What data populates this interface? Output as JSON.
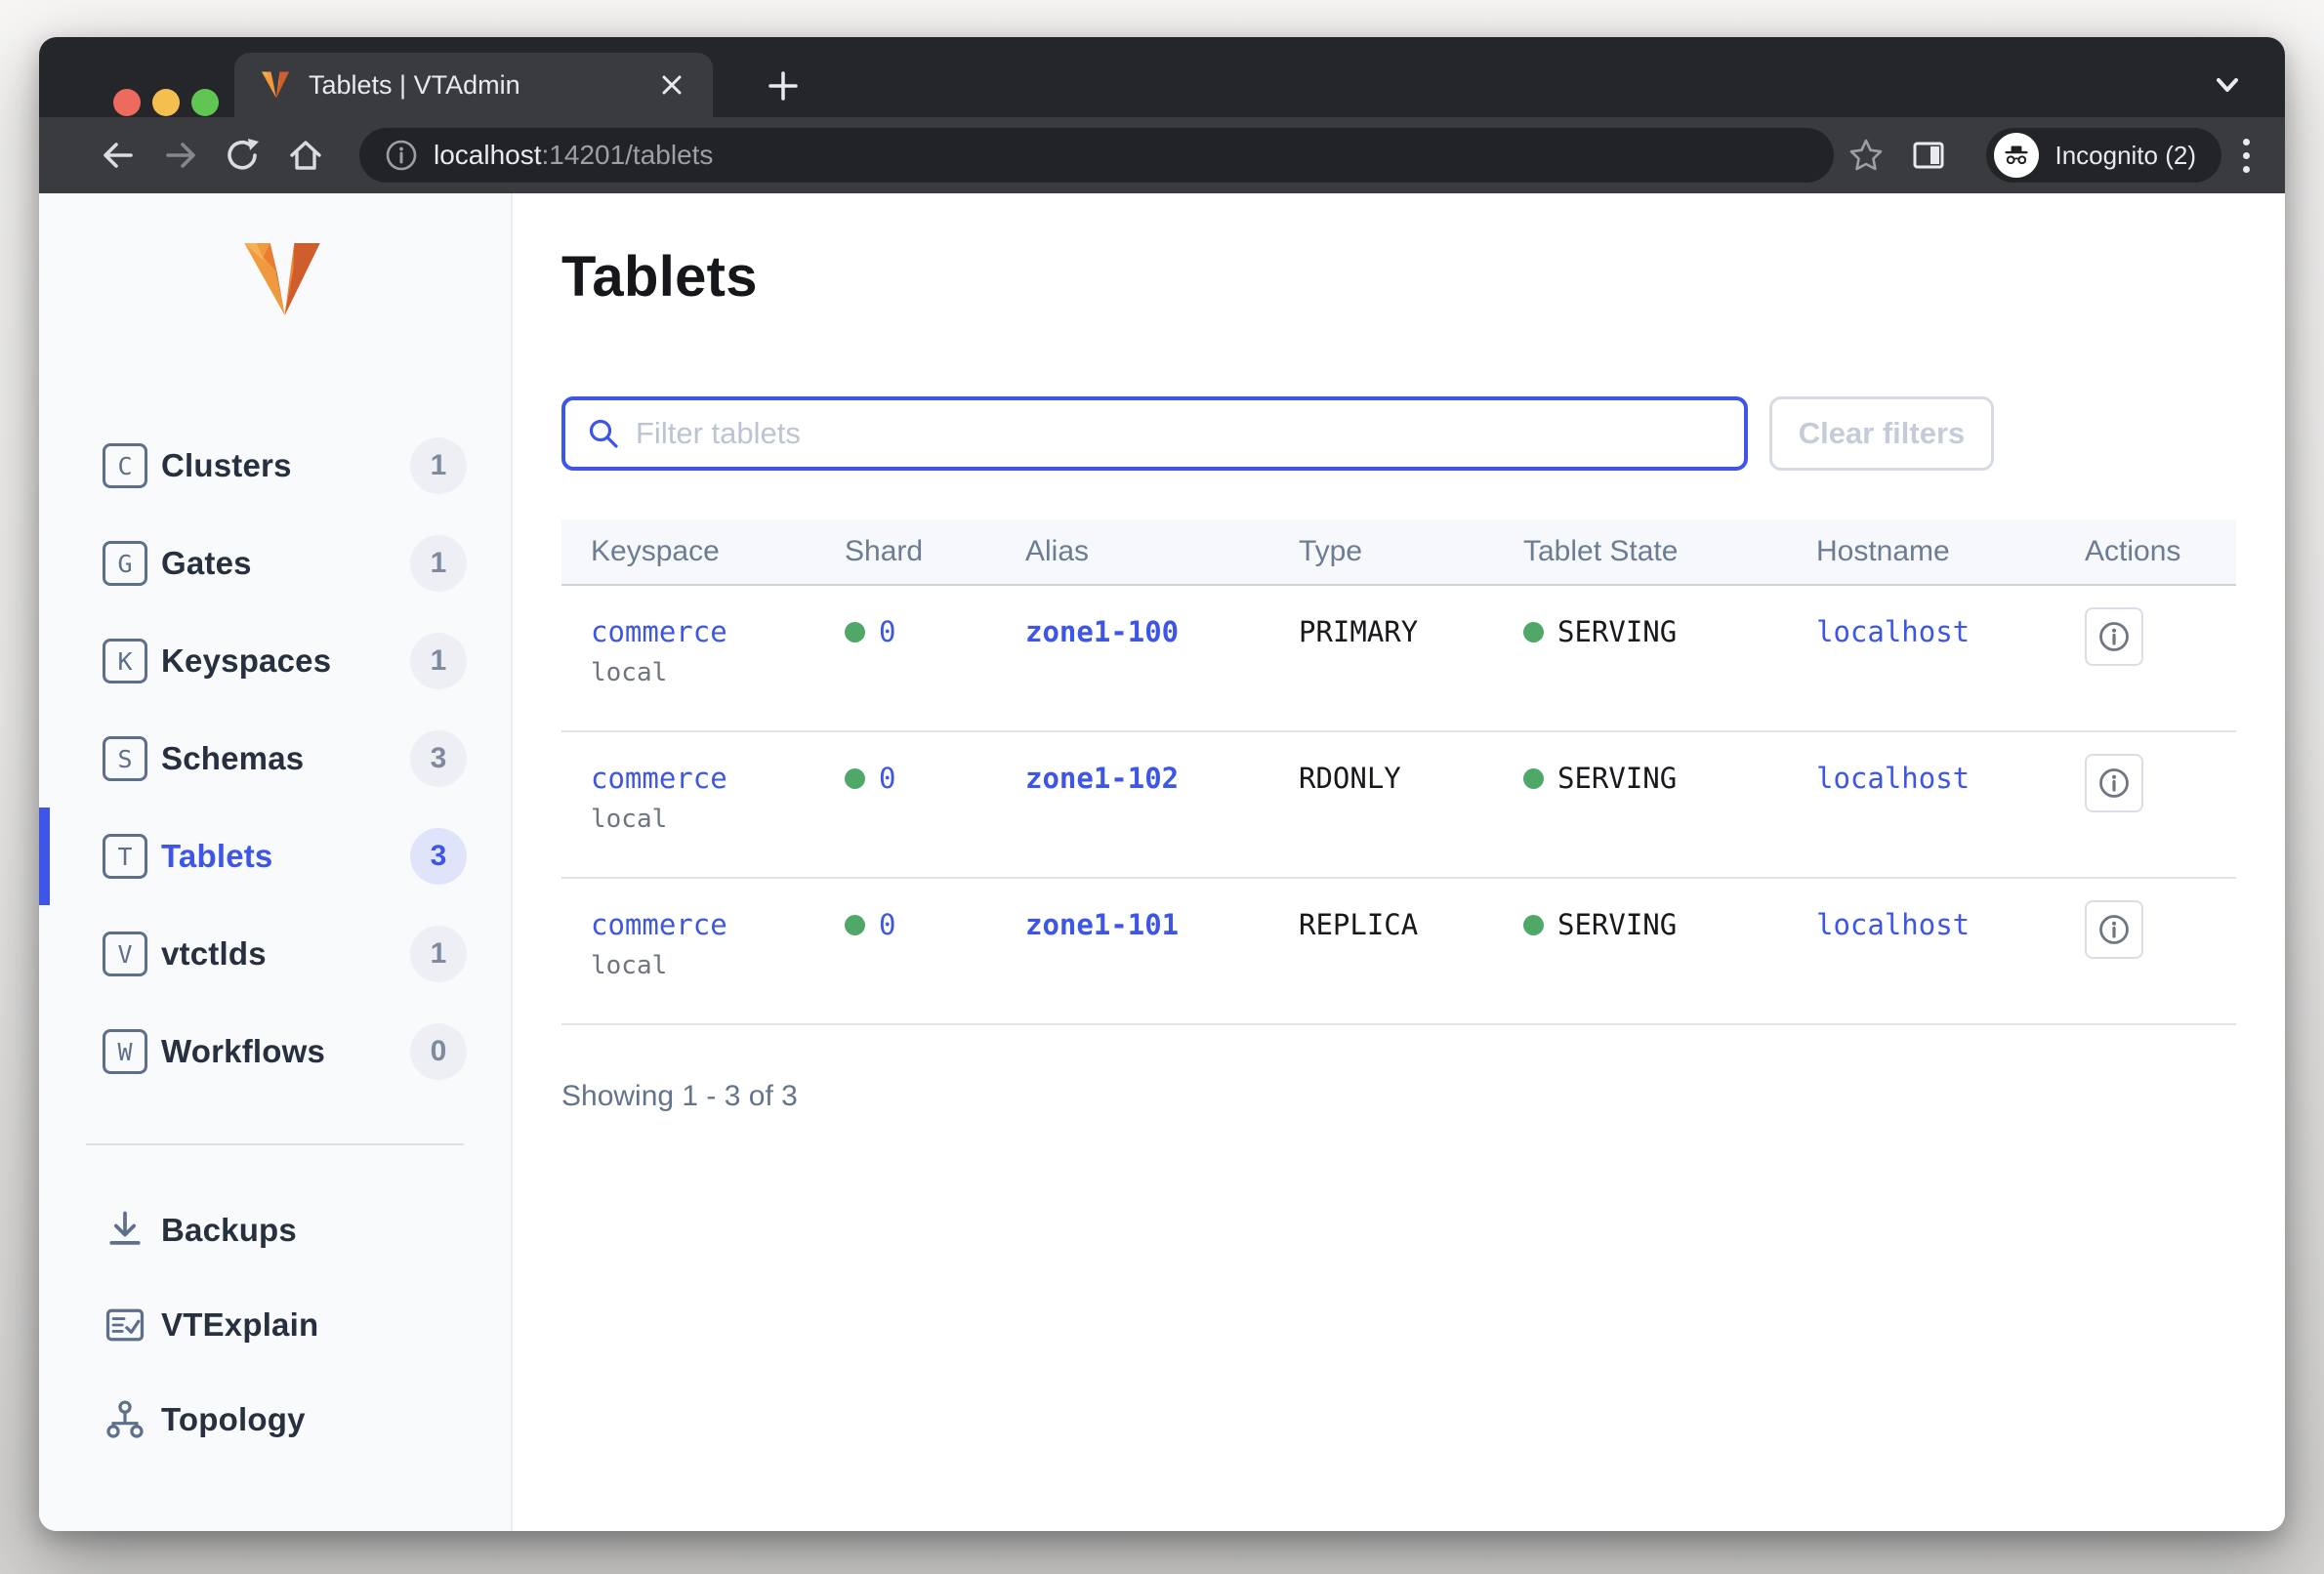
{
  "browser": {
    "tab_title": "Tablets | VTAdmin",
    "url_host": "localhost",
    "url_rest": ":14201/tablets",
    "incognito_label": "Incognito (2)"
  },
  "sidebar": {
    "items": [
      {
        "letter": "C",
        "label": "Clusters",
        "count": "1",
        "active": false
      },
      {
        "letter": "G",
        "label": "Gates",
        "count": "1",
        "active": false
      },
      {
        "letter": "K",
        "label": "Keyspaces",
        "count": "1",
        "active": false
      },
      {
        "letter": "S",
        "label": "Schemas",
        "count": "3",
        "active": false
      },
      {
        "letter": "T",
        "label": "Tablets",
        "count": "3",
        "active": true
      },
      {
        "letter": "V",
        "label": "vtctlds",
        "count": "1",
        "active": false
      },
      {
        "letter": "W",
        "label": "Workflows",
        "count": "0",
        "active": false
      }
    ],
    "tools": [
      {
        "icon": "download-icon",
        "label": "Backups"
      },
      {
        "icon": "document-check-icon",
        "label": "VTExplain"
      },
      {
        "icon": "topology-icon",
        "label": "Topology"
      }
    ]
  },
  "main": {
    "title": "Tablets",
    "filter_placeholder": "Filter tablets",
    "clear_filters_label": "Clear filters",
    "table": {
      "columns": [
        "Keyspace",
        "Shard",
        "Alias",
        "Type",
        "Tablet State",
        "Hostname",
        "Actions"
      ],
      "rows": [
        {
          "keyspace": "commerce",
          "cluster": "local",
          "shard": "0",
          "alias": "zone1-100",
          "type": "PRIMARY",
          "state": "SERVING",
          "hostname": "localhost"
        },
        {
          "keyspace": "commerce",
          "cluster": "local",
          "shard": "0",
          "alias": "zone1-102",
          "type": "RDONLY",
          "state": "SERVING",
          "hostname": "localhost"
        },
        {
          "keyspace": "commerce",
          "cluster": "local",
          "shard": "0",
          "alias": "zone1-101",
          "type": "REPLICA",
          "state": "SERVING",
          "hostname": "localhost"
        }
      ]
    },
    "showing_text": "Showing 1 - 3 of 3"
  },
  "colors": {
    "accent_blue": "#3d56e8",
    "serving_green": "#4fa868",
    "vitess_orange": "#e8813a"
  }
}
